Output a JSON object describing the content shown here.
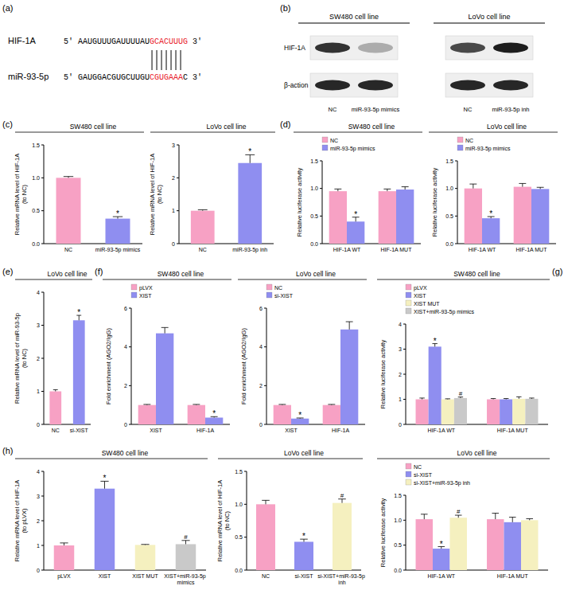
{
  "figure": {
    "panel_labels": [
      "(a)",
      "(b)",
      "(c)",
      "(d)",
      "(e)",
      "(f)",
      "(g)",
      "(h)"
    ],
    "sequences": [
      {
        "name": "HIF-1A",
        "segments": [
          {
            "text": "5' AAUGUUUGAUUUUAU"
          },
          {
            "text": "GCACUUUG",
            "highlight": true
          },
          {
            "text": " 3'"
          }
        ]
      },
      {
        "name": "miR-93-5p",
        "segments": [
          {
            "text": "5' GAUGGACGUGCUUGU"
          },
          {
            "text": "CGUGAAA",
            "highlight": true
          },
          {
            "text": "C 3'"
          }
        ]
      }
    ],
    "blot": {
      "groups": [
        {
          "title": "SW480 cell line",
          "lanes": [
            "NC",
            "miR-93-5p mimics"
          ]
        },
        {
          "title": "LoVo cell line",
          "lanes": [
            "NC",
            "miR-93-5p inh"
          ]
        }
      ],
      "rows": [
        {
          "label": "HIF-1A",
          "intensity": [
            [
              0.85,
              0.3
            ],
            [
              0.75,
              0.95
            ]
          ]
        },
        {
          "label": "β-action",
          "intensity": [
            [
              0.9,
              0.9
            ],
            [
              0.9,
              0.9
            ]
          ]
        }
      ]
    }
  },
  "chart_data": [
    {
      "type": "bar",
      "title": "SW480 cell line",
      "y_label": [
        "Relative mRNA level of HIF-1A",
        "(to NC)"
      ],
      "categories": [
        "NC",
        "miR-93-5p mimics"
      ],
      "series": [
        {
          "colors": [
            "#f7a1c4",
            "#8f8ef0"
          ],
          "values": [
            1.0,
            0.38
          ],
          "errors": [
            0.02,
            0.03
          ]
        }
      ],
      "ylim": [
        0,
        1.5
      ],
      "yticks": [
        {
          "value": 0,
          "label": "0.0"
        },
        {
          "value": 0.5,
          "label": "0.5"
        },
        {
          "value": 1,
          "label": "1.0"
        },
        {
          "value": 1.5,
          "label": "1.5"
        }
      ],
      "annotations": [
        {
          "text": "*",
          "series": 0,
          "category": 1
        }
      ]
    },
    {
      "type": "bar",
      "title": "LoVo cell line",
      "y_label": [
        "Relative mRNA level of HIF-1A",
        "(to NC)"
      ],
      "categories": [
        "NC",
        "miR-93-5p inh"
      ],
      "series": [
        {
          "colors": [
            "#f7a1c4",
            "#8f8ef0"
          ],
          "values": [
            1.0,
            2.45
          ],
          "errors": [
            0.03,
            0.25
          ]
        }
      ],
      "ylim": [
        0,
        3
      ],
      "yticks": [
        0,
        1,
        2,
        3
      ],
      "annotations": [
        {
          "text": "*",
          "series": 0,
          "category": 1
        }
      ]
    },
    {
      "type": "bar",
      "title": "SW480 cell line",
      "y_label": [
        "Relative luciferase activity"
      ],
      "categories": [
        "HIF-1A WT",
        "HIF-1A MUT"
      ],
      "series": [
        {
          "name": "NC",
          "color": "#f7a1c4",
          "values": [
            0.95,
            0.95
          ],
          "errors": [
            0.04,
            0.04
          ]
        },
        {
          "name": "miR-93-5p mimics",
          "color": "#8f8ef0",
          "values": [
            0.4,
            0.98
          ],
          "errors": [
            0.08,
            0.05
          ]
        }
      ],
      "legend": "top-left",
      "ylim": [
        0,
        1.5
      ],
      "yticks": [
        {
          "value": 0,
          "label": "0.0"
        },
        {
          "value": 0.5,
          "label": "0.5"
        },
        {
          "value": 1,
          "label": "1.0"
        },
        {
          "value": 1.5,
          "label": "1.5"
        }
      ],
      "annotations": [
        {
          "text": "*",
          "series": 1,
          "category": 0
        }
      ]
    },
    {
      "type": "bar",
      "title": "LoVo cell line",
      "y_label": [
        "Relative luciferase activity"
      ],
      "categories": [
        "HIF-1A WT",
        "HIF-1A MUT"
      ],
      "series": [
        {
          "name": "NC",
          "color": "#f7a1c4",
          "values": [
            1.0,
            1.03
          ],
          "errors": [
            0.08,
            0.06
          ]
        },
        {
          "name": "miR-93-5p mimics",
          "color": "#8f8ef0",
          "values": [
            0.46,
            0.99
          ],
          "errors": [
            0.03,
            0.03
          ]
        }
      ],
      "legend": "top-left",
      "ylim": [
        0,
        1.5
      ],
      "yticks": [
        {
          "value": 0,
          "label": "0.0"
        },
        {
          "value": 0.5,
          "label": "0.5"
        },
        {
          "value": 1,
          "label": "1.0"
        },
        {
          "value": 1.5,
          "label": "1.5"
        }
      ],
      "annotations": [
        {
          "text": "*",
          "series": 1,
          "category": 0
        }
      ]
    },
    {
      "type": "bar",
      "title": "LoVo cell line",
      "y_label": [
        "Relative mRNA level of miR-93-5p",
        "(to NC)"
      ],
      "categories": [
        "NC",
        "si-XIST"
      ],
      "series": [
        {
          "colors": [
            "#f7a1c4",
            "#8f8ef0"
          ],
          "values": [
            1.0,
            3.15
          ],
          "errors": [
            0.05,
            0.15
          ]
        }
      ],
      "ylim": [
        0,
        4
      ],
      "yticks": [
        0,
        1,
        2,
        3,
        4
      ],
      "annotations": [
        {
          "text": "*",
          "series": 0,
          "category": 1
        }
      ]
    },
    {
      "type": "bar",
      "title": "SW480 cell line",
      "y_label": [
        "Fold enrichment (AGO2/IgG)"
      ],
      "categories": [
        "XIST",
        "HIF-1A"
      ],
      "series": [
        {
          "name": "pLVX",
          "color": "#f7a1c4",
          "values": [
            1.0,
            1.0
          ],
          "errors": [
            0.03,
            0.03
          ]
        },
        {
          "name": "XIST",
          "color": "#8f8ef0",
          "values": [
            4.7,
            0.35
          ],
          "errors": [
            0.3,
            0.05
          ]
        }
      ],
      "legend": "top-left",
      "ylim": [
        0,
        6
      ],
      "yticks": [
        0,
        2,
        4,
        6
      ],
      "annotations": [
        {
          "text": "*",
          "series": 1,
          "category": 1
        }
      ]
    },
    {
      "type": "bar",
      "title": "LoVo cell line",
      "y_label": [
        "Fold enrichment (AGO2/IgG)"
      ],
      "categories": [
        "XIST",
        "HIF-1A"
      ],
      "series": [
        {
          "name": "NC",
          "color": "#f7a1c4",
          "values": [
            1.0,
            1.0
          ],
          "errors": [
            0.03,
            0.03
          ]
        },
        {
          "name": "si-XIST",
          "color": "#8f8ef0",
          "values": [
            0.3,
            4.9
          ],
          "errors": [
            0.03,
            0.4
          ]
        }
      ],
      "legend": "top-left",
      "ylim": [
        0,
        6
      ],
      "yticks": [
        0,
        2,
        4,
        6
      ],
      "annotations": [
        {
          "text": "*",
          "series": 1,
          "category": 0
        }
      ]
    },
    {
      "type": "bar",
      "title": "SW480 cell line",
      "y_label": [
        "Relative luciferase activity"
      ],
      "categories": [
        "HIF-1A WT",
        "HIF-1A MUT"
      ],
      "series": [
        {
          "name": "pLVX",
          "color": "#f7a1c4",
          "values": [
            1.0,
            1.0
          ],
          "errors": [
            0.05,
            0.03
          ]
        },
        {
          "name": "XIST",
          "color": "#8f8ef0",
          "values": [
            3.1,
            1.0
          ],
          "errors": [
            0.12,
            0.03
          ]
        },
        {
          "name": "XIST MUT",
          "color": "#f5f0bf",
          "values": [
            1.0,
            1.02
          ],
          "errors": [
            0.02,
            0.08
          ]
        },
        {
          "name": "XIST+miR-93-5p mimics",
          "color": "#c9c9c9",
          "values": [
            1.05,
            1.02
          ],
          "errors": [
            0.04,
            0.03
          ]
        }
      ],
      "legend": "top-left",
      "ylim": [
        0,
        4
      ],
      "yticks": [
        0,
        1,
        2,
        3,
        4
      ],
      "annotations": [
        {
          "text": "*",
          "series": 1,
          "category": 0
        },
        {
          "text": "#",
          "series": 3,
          "category": 0
        }
      ]
    },
    {
      "type": "bar",
      "title": "LoVo cell line",
      "y_label": [
        "Relative luciferase activity"
      ],
      "categories": [
        "HIF-1A WT",
        "HIF-1A MUT"
      ],
      "series": [
        {
          "name": "NC",
          "color": "#f7a1c4",
          "values": [
            1.02,
            1.02
          ],
          "errors": [
            0.1,
            0.12
          ]
        },
        {
          "name": "si-XIST",
          "color": "#8f8ef0",
          "values": [
            0.43,
            0.96
          ],
          "errors": [
            0.04,
            0.1
          ]
        },
        {
          "name": "si-XIST+miR-93-5p inh",
          "color": "#f5f0bf",
          "values": [
            1.05,
            1.0
          ],
          "errors": [
            0.05,
            0.03
          ]
        }
      ],
      "legend": "top-left",
      "ylim": [
        0,
        1.5
      ],
      "yticks": [
        {
          "value": 0,
          "label": "0.0"
        },
        {
          "value": 0.5,
          "label": "0.5"
        },
        {
          "value": 1,
          "label": "1.0"
        },
        {
          "value": 1.5,
          "label": "1.5"
        }
      ],
      "annotations": [
        {
          "text": "*",
          "series": 1,
          "category": 0
        },
        {
          "text": "#",
          "series": 2,
          "category": 0
        }
      ]
    },
    {
      "type": "bar",
      "title": "SW480 cell line",
      "y_label": [
        "Relative mRNA level of HIF-1A",
        "(to pLVX)"
      ],
      "categories": [
        "pLVX",
        "XIST",
        "XIST MUT",
        "XIST+miR-93-5p mimics"
      ],
      "series": [
        {
          "colors": [
            "#f7a1c4",
            "#8f8ef0",
            "#f5f0bf",
            "#c9c9c9"
          ],
          "values": [
            1.0,
            3.3,
            1.02,
            1.05
          ],
          "errors": [
            0.1,
            0.3,
            0.02,
            0.15
          ]
        }
      ],
      "ylim": [
        0,
        4
      ],
      "yticks": [
        0,
        1,
        2,
        3,
        4
      ],
      "annotations": [
        {
          "text": "*",
          "series": 0,
          "category": 1
        },
        {
          "text": "#",
          "series": 0,
          "category": 3
        }
      ]
    },
    {
      "type": "bar",
      "title": "LoVo cell line",
      "y_label": [
        "Relative mRNA level of HIF-1A",
        "(to NC)"
      ],
      "categories": [
        "NC",
        "si-XIST",
        "si-XIST+miR-93-5p inh"
      ],
      "series": [
        {
          "colors": [
            "#f7a1c4",
            "#8f8ef0",
            "#f5f0bf"
          ],
          "values": [
            1.0,
            0.43,
            1.02
          ],
          "errors": [
            0.06,
            0.04,
            0.06
          ]
        }
      ],
      "ylim": [
        0,
        1.5
      ],
      "yticks": [
        {
          "value": 0,
          "label": "0.0"
        },
        {
          "value": 0.5,
          "label": "0.5"
        },
        {
          "value": 1,
          "label": "1.0"
        },
        {
          "value": 1.5,
          "label": "1.5"
        }
      ],
      "annotations": [
        {
          "text": "*",
          "series": 0,
          "category": 1
        },
        {
          "text": "#",
          "series": 0,
          "category": 2
        }
      ]
    }
  ]
}
